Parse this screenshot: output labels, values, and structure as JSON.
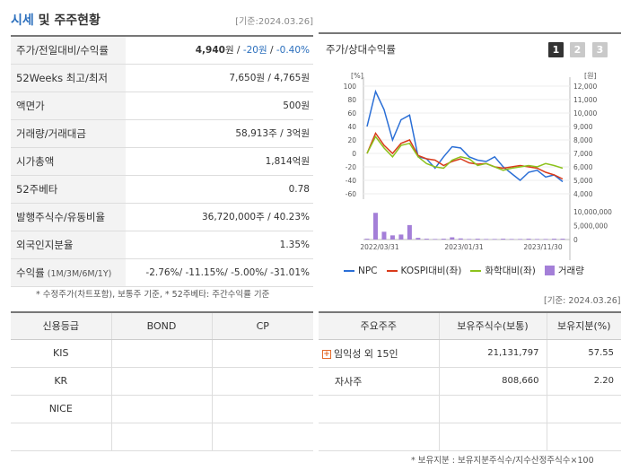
{
  "header": {
    "title_accent": "시세",
    "title_rest": " 및 주주현황",
    "date": "[기준:2024.03.26]"
  },
  "quote": {
    "rows": [
      {
        "label": "주가/전일대비/수익률",
        "value_main": "4,940",
        "value_unit": "원 / ",
        "value_change": "-20원",
        "value_sep": " / ",
        "value_rate": "-0.40%"
      },
      {
        "label": "52Weeks 최고/최저",
        "value": "7,650원 / 4,765원"
      },
      {
        "label": "액면가",
        "value": "500원"
      },
      {
        "label": "거래량/거래대금",
        "value": "58,913주 / 3억원"
      },
      {
        "label": "시가총액",
        "value": "1,814억원"
      },
      {
        "label": "52주베타",
        "value": "0.78"
      },
      {
        "label": "발행주식수/유동비율",
        "value": "36,720,000주 / 40.23%"
      },
      {
        "label": "외국인지분율",
        "value": "1.35%"
      },
      {
        "label": "수익률",
        "label_small": " (1M/3M/6M/1Y)",
        "value": "-2.76%/ -11.15%/ -5.00%/ -31.01%"
      }
    ],
    "note": "* 수정주가(차트포함), 보통주 기준, * 52주베타: 주간수익률 기준"
  },
  "chart_panel": {
    "title": "주가/상대수익률",
    "tabs": [
      "1",
      "2",
      "3"
    ],
    "active_tab": 0,
    "legend": [
      {
        "label": "NPC",
        "color": "#2b6fd6",
        "kind": "line"
      },
      {
        "label": "KOSPI대비(좌)",
        "color": "#d93a1a",
        "kind": "line"
      },
      {
        "label": "화학대비(좌)",
        "color": "#8cc21c",
        "kind": "line"
      },
      {
        "label": "거래량",
        "color": "#a47fd8",
        "kind": "bar"
      }
    ],
    "date": "[기준: 2024.03.26]"
  },
  "chart_data": {
    "type": "line",
    "left_axis_unit": "[%]",
    "right_axis_unit": "[원]",
    "left_ticks": [
      100,
      80,
      60,
      40,
      20,
      0,
      -20,
      -40,
      -60
    ],
    "right_ticks": [
      "12,000",
      "11,000",
      "10,000",
      "9,000",
      "8,000",
      "7,000",
      "6,000",
      "5,000",
      "4,000"
    ],
    "volume_ticks": [
      "10,000,000",
      "5,000,000",
      "0"
    ],
    "x_tick_labels": [
      "2022/03/31",
      "2023/01/31",
      "2023/11/30"
    ],
    "ylim_left": [
      -60,
      100
    ],
    "series": [
      {
        "name": "NPC",
        "color": "#2b6fd6",
        "values": [
          40,
          92,
          65,
          20,
          50,
          57,
          -5,
          -8,
          -22,
          -5,
          10,
          8,
          -5,
          -10,
          -12,
          -5,
          -20,
          -30,
          -40,
          -28,
          -25,
          -35,
          -32,
          -42
        ]
      },
      {
        "name": "KOSPI대비(좌)",
        "color": "#d93a1a",
        "values": [
          0,
          30,
          12,
          0,
          15,
          20,
          -3,
          -8,
          -10,
          -18,
          -12,
          -8,
          -14,
          -16,
          -15,
          -20,
          -22,
          -20,
          -18,
          -20,
          -22,
          -28,
          -32,
          -38
        ]
      },
      {
        "name": "화학대비(좌)",
        "color": "#8cc21c",
        "values": [
          0,
          25,
          8,
          -5,
          12,
          15,
          -5,
          -15,
          -20,
          -22,
          -10,
          -5,
          -8,
          -18,
          -15,
          -20,
          -25,
          -22,
          -20,
          -18,
          -20,
          -15,
          -18,
          -22
        ]
      }
    ],
    "volume": {
      "name": "거래량",
      "color": "#a47fd8",
      "values": [
        0.3,
        9.6,
        2.8,
        1.5,
        1.8,
        5.2,
        0.6,
        0.3,
        0.2,
        0.3,
        0.8,
        0.4,
        0.2,
        0.3,
        0.2,
        0.2,
        0.3,
        0.2,
        0.2,
        0.3,
        0.2,
        0.2,
        0.3,
        0.3
      ],
      "unit": "millions"
    }
  },
  "credit": {
    "headers": [
      "신용등급",
      "BOND",
      "CP"
    ],
    "rows": [
      [
        "KIS",
        "",
        ""
      ],
      [
        "KR",
        "",
        ""
      ],
      [
        "NICE",
        "",
        ""
      ],
      [
        "",
        "",
        ""
      ]
    ]
  },
  "holders": {
    "headers": [
      "주요주주",
      "보유주식수(보통)",
      "보유지분(%)"
    ],
    "rows": [
      {
        "name": "임익성 외 15인",
        "shares": "21,131,797",
        "pct": "57.55",
        "expandable": true
      },
      {
        "name": "자사주",
        "shares": "808,660",
        "pct": "2.20",
        "expandable": false
      }
    ],
    "note": "* 보유지분 : 보유지분주식수/지수산정주식수×100"
  }
}
